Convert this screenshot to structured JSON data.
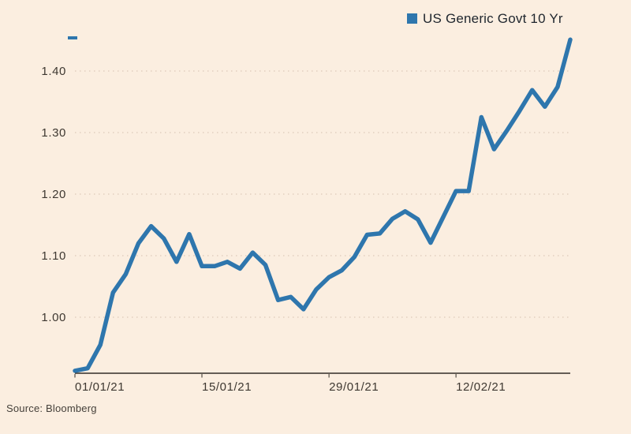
{
  "legend": {
    "label": "US Generic Govt 10 Yr"
  },
  "source": {
    "text": "Source: Bloomberg"
  },
  "colors": {
    "background": "#fbeee0",
    "line": "#2e76ad",
    "axis": "#332d27",
    "grid": "#dcc9b8",
    "label": "#3e3831",
    "legend_text": "#1f262e",
    "source_text": "#45403a"
  },
  "chart_data": {
    "type": "line",
    "title": "",
    "legend_position": "top-right",
    "grid": "horizontal-dotted",
    "x": [
      "01/01/21",
      "04/01/21",
      "05/01/21",
      "06/01/21",
      "07/01/21",
      "08/01/21",
      "11/01/21",
      "12/01/21",
      "13/01/21",
      "14/01/21",
      "15/01/21",
      "18/01/21",
      "19/01/21",
      "20/01/21",
      "21/01/21",
      "22/01/21",
      "25/01/21",
      "26/01/21",
      "27/01/21",
      "28/01/21",
      "29/01/21",
      "01/02/21",
      "02/02/21",
      "03/02/21",
      "04/02/21",
      "05/02/21",
      "08/02/21",
      "09/02/21",
      "10/02/21",
      "11/02/21",
      "12/02/21",
      "15/02/21",
      "16/02/21",
      "17/02/21",
      "18/02/21",
      "19/02/21",
      "22/02/21",
      "23/02/21",
      "24/02/21",
      "25/02/21"
    ],
    "series": [
      {
        "name": "US Generic Govt 10 Yr",
        "values": [
          0.913,
          0.917,
          0.955,
          1.04,
          1.07,
          1.12,
          1.148,
          1.128,
          1.09,
          1.135,
          1.083,
          1.083,
          1.09,
          1.079,
          1.105,
          1.085,
          1.028,
          1.033,
          1.013,
          1.045,
          1.065,
          1.076,
          1.098,
          1.134,
          1.136,
          1.16,
          1.172,
          1.159,
          1.121,
          1.163,
          1.205,
          1.205,
          1.325,
          1.273,
          1.303,
          1.335,
          1.369,
          1.342,
          1.374,
          1.451
        ]
      }
    ],
    "x_axis": {
      "tick_indices": [
        0,
        10,
        20,
        30
      ],
      "tick_labels": [
        "01/01/21",
        "15/01/21",
        "29/01/21",
        "12/02/21"
      ]
    },
    "y_axis": {
      "tick_values": [
        1.0,
        1.1,
        1.2,
        1.3,
        1.4
      ],
      "tick_labels": [
        "1.00",
        "1.10",
        "1.20",
        "1.30",
        "1.40"
      ],
      "range": [
        0.905,
        1.47
      ]
    }
  }
}
